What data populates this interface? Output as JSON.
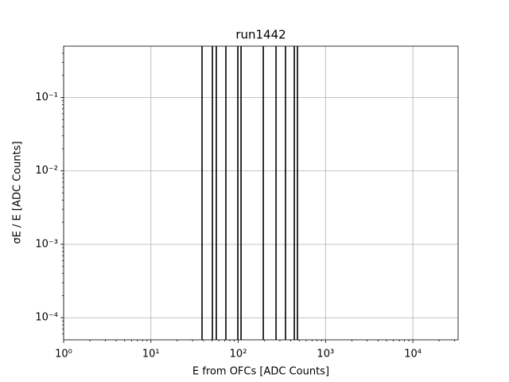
{
  "chart_data": {
    "type": "vlines",
    "title": "run1442",
    "x_label": "E from OFCs [ADC Counts]",
    "y_label": "σE / E [ADC Counts]",
    "x": [
      38.5,
      50.6,
      56.1,
      72.2,
      99,
      107.7,
      193.7,
      271,
      348,
      439,
      477
    ],
    "color": "#000000",
    "x_log": true,
    "y_log": true,
    "grid": true,
    "xlim": [
      1,
      33000
    ],
    "ylim": [
      5e-05,
      0.5
    ],
    "xticks": [
      {
        "value": 1,
        "label": "10⁰"
      },
      {
        "value": 10,
        "label": "10¹"
      },
      {
        "value": 100,
        "label": "10²"
      },
      {
        "value": 1000,
        "label": "10³"
      },
      {
        "value": 10000,
        "label": "10⁴"
      }
    ],
    "yticks": [
      {
        "value": 0.0001,
        "label": "10⁻⁴"
      },
      {
        "value": 0.001,
        "label": "10⁻³"
      },
      {
        "value": 0.01,
        "label": "10⁻²"
      },
      {
        "value": 0.1,
        "label": "10⁻¹"
      }
    ]
  }
}
